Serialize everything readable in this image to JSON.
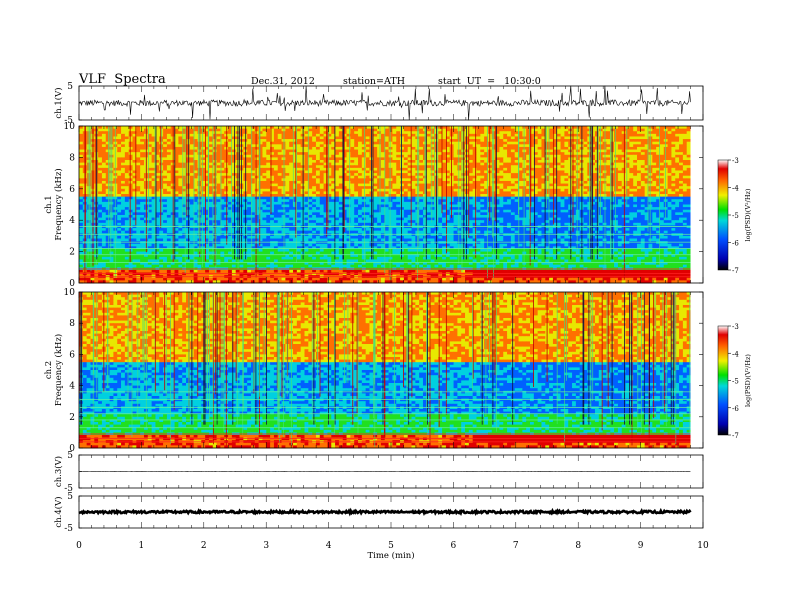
{
  "header": {
    "title": "VLF  Spectra",
    "date": "Dec.31, 2012",
    "station": "station=ATH",
    "start": "start  UT  =   10:30:0"
  },
  "chart_data": [
    {
      "type": "line",
      "panel": "ch1-waveform",
      "ylabel": "ch.1(V)",
      "ylim": [
        -5,
        5
      ],
      "yticks": [
        "5",
        "-5"
      ],
      "xlim": [
        0,
        10
      ],
      "mean_level": 0,
      "data_end": 9.8
    },
    {
      "type": "heatmap",
      "panel": "ch1-spectrogram",
      "ylabel_line1": "ch.1",
      "ylabel_line2": "Frequency  (kHz)",
      "ylim": [
        0,
        10
      ],
      "yticks": [
        "0",
        "2",
        "4",
        "6",
        "8",
        "10"
      ],
      "xlim": [
        0,
        10
      ],
      "data_end": 9.8,
      "colorbar": {
        "label": "log(PSD)(V²/Hz)",
        "range": [
          -7,
          -3
        ],
        "ticks": [
          "-3",
          "-4",
          "-5",
          "-6",
          "-7"
        ]
      }
    },
    {
      "type": "heatmap",
      "panel": "ch2-spectrogram",
      "ylabel_line1": "ch.2",
      "ylabel_line2": "Frequency  (kHz)",
      "ylim": [
        0,
        10
      ],
      "yticks": [
        "0",
        "2",
        "4",
        "6",
        "8",
        "10"
      ],
      "xlim": [
        0,
        10
      ],
      "data_end": 9.8,
      "colorbar": {
        "label": "log(PSD)(V²/Hz)",
        "range": [
          -7,
          -3
        ],
        "ticks": [
          "-3",
          "-4",
          "-5",
          "-6",
          "-7"
        ]
      }
    },
    {
      "type": "line",
      "panel": "ch3-waveform",
      "ylabel": "ch.3(V)",
      "ylim": [
        -5,
        5
      ],
      "yticks": [
        "5",
        "-5"
      ],
      "xlim": [
        0,
        10
      ],
      "mean_level": 0,
      "data_end": 9.8
    },
    {
      "type": "line",
      "panel": "ch4-waveform",
      "ylabel": "ch.4(V)",
      "ylim": [
        -5,
        5
      ],
      "yticks": [
        "5",
        "-5"
      ],
      "xlim": [
        0,
        10
      ],
      "mean_level": 0,
      "data_end": 9.8
    }
  ],
  "xaxis": {
    "label": "Time  (min)",
    "ticks": [
      "0",
      "1",
      "2",
      "3",
      "4",
      "5",
      "6",
      "7",
      "8",
      "9",
      "10"
    ]
  }
}
